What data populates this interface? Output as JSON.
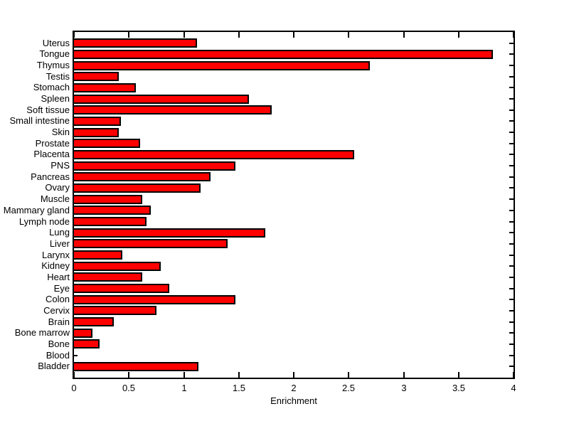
{
  "chart_data": {
    "type": "bar",
    "orientation": "horizontal",
    "title": "",
    "xlabel": "Enrichment",
    "ylabel": "",
    "xlim": [
      0,
      4
    ],
    "grid": false,
    "legend": null,
    "bar_color": "#ff0000",
    "bar_edge_color": "#000000",
    "background_color": "#ffffff",
    "axis_color": "#000000",
    "xtick_values": [
      0,
      0.5,
      1,
      1.5,
      2,
      2.5,
      3,
      3.5,
      4
    ],
    "xtick_labels": [
      "0",
      "0.5",
      "1",
      "1.5",
      "2",
      "2.5",
      "3",
      "3.5",
      "4"
    ],
    "categories": [
      "Uterus",
      "Tongue",
      "Thymus",
      "Testis",
      "Stomach",
      "Spleen",
      "Soft tissue",
      "Small intestine",
      "Skin",
      "Prostate",
      "Placenta",
      "PNS",
      "Pancreas",
      "Ovary",
      "Muscle",
      "Mammary gland",
      "Lymph node",
      "Lung",
      "Liver",
      "Larynx",
      "Kidney",
      "Heart",
      "Eye",
      "Colon",
      "Cervix",
      "Brain",
      "Bone marrow",
      "Bone",
      "Blood",
      "Bladder"
    ],
    "values": [
      1.12,
      3.81,
      2.69,
      0.41,
      0.56,
      1.59,
      1.8,
      0.43,
      0.41,
      0.6,
      2.55,
      1.47,
      1.24,
      1.15,
      0.62,
      0.7,
      0.66,
      1.74,
      1.4,
      0.44,
      0.79,
      0.62,
      0.87,
      1.47,
      0.75,
      0.36,
      0.17,
      0.23,
      0.0,
      1.13
    ]
  }
}
